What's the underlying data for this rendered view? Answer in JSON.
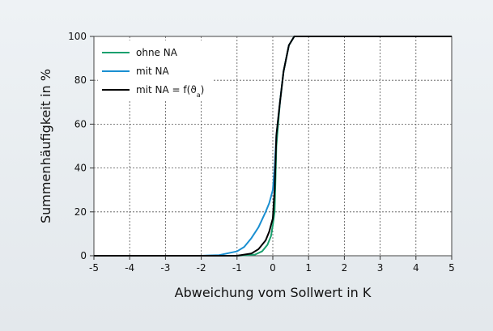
{
  "chart_data": {
    "type": "line",
    "title": "",
    "xlabel": "Abweichung vom Sollwert in K",
    "ylabel": "Summenhäufigkeit in %",
    "xlim": [
      -5,
      5
    ],
    "ylim": [
      0,
      100
    ],
    "x_ticks": [
      "-5",
      "-4",
      "-3",
      "-2",
      "-1",
      "0",
      "1",
      "2",
      "3",
      "4",
      "5"
    ],
    "y_ticks": [
      "0",
      "20",
      "40",
      "60",
      "80",
      "100"
    ],
    "grid": true,
    "legend_position": "top-left",
    "series": [
      {
        "name": "ohne NA",
        "legend_html": "ohne NA",
        "color": "#1aa06e",
        "x": [
          -5,
          -1.0,
          -0.5,
          -0.3,
          -0.15,
          -0.05,
          0.0,
          0.05,
          0.1,
          0.2,
          0.3,
          0.45,
          0.6,
          5
        ],
        "y": [
          0,
          0,
          0.5,
          2,
          5,
          9,
          14,
          20,
          50,
          70,
          84,
          96,
          100,
          100
        ]
      },
      {
        "name": "mit NA",
        "legend_html": "mit NA",
        "color": "#1a8fd1",
        "x": [
          -5,
          -2.0,
          -1.5,
          -1.0,
          -0.8,
          -0.6,
          -0.4,
          -0.2,
          -0.1,
          0.0,
          0.05,
          0.1,
          0.2,
          0.3,
          0.45,
          0.6,
          5
        ],
        "y": [
          0,
          0,
          0.3,
          2,
          4,
          8,
          13,
          20,
          24,
          30,
          40,
          55,
          70,
          84,
          96,
          100,
          100
        ]
      },
      {
        "name": "mit NA = f(ϑa)",
        "legend_html": "mit NA = f(ϑ<tspan baseline-shift=\"sub\" font-size=\"8\">a</tspan>)",
        "color": "#000000",
        "x": [
          -5,
          -1.0,
          -0.6,
          -0.4,
          -0.2,
          -0.1,
          0.0,
          0.05,
          0.1,
          0.2,
          0.3,
          0.45,
          0.6,
          5
        ],
        "y": [
          0,
          0,
          1,
          3,
          7,
          11,
          17,
          30,
          55,
          70,
          84,
          96,
          100,
          100
        ]
      }
    ]
  }
}
